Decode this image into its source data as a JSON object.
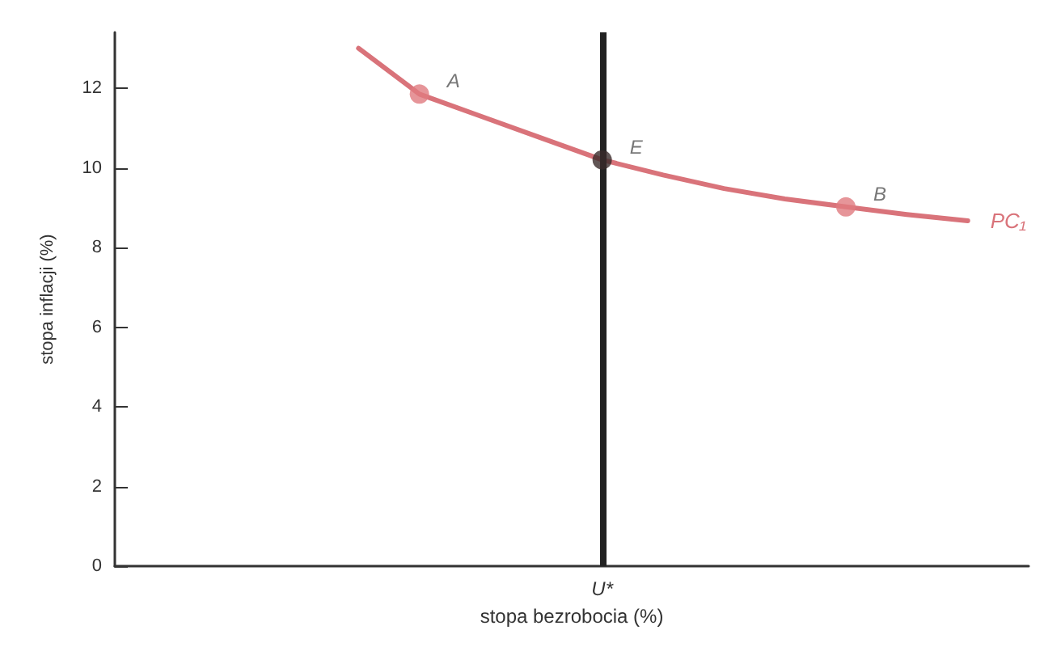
{
  "chart_data": {
    "type": "line",
    "xlabel": "stopa bezrobocia (%)",
    "ylabel": "stopa inflacji (%)",
    "categories": [
      null,
      null,
      null,
      null,
      null,
      null,
      null,
      null,
      "U*",
      null,
      null,
      null,
      null,
      null,
      null,
      null
    ],
    "ylim": [
      0,
      13.4
    ],
    "yticks": [
      0,
      2,
      4,
      6,
      8,
      10,
      12
    ],
    "grid": false,
    "legend": false,
    "series": [
      {
        "name": "PC₁",
        "color": "#d9737a",
        "marker": "none",
        "values": [
          null,
          null,
          null,
          null,
          13.0,
          11.85,
          11.3,
          10.75,
          10.2,
          9.82,
          9.48,
          9.22,
          9.02,
          8.83,
          8.67,
          null
        ]
      },
      {
        "type": "scatter",
        "color": "#d9737a",
        "colors": [
          null,
          null,
          null,
          null,
          null,
          "#e07a80",
          null,
          null,
          "#3a2a2a",
          null,
          null,
          null,
          "#e07a80",
          null,
          null,
          null
        ],
        "marker": "circle",
        "values": [
          null,
          null,
          null,
          null,
          null,
          11.85,
          null,
          null,
          10.2,
          null,
          null,
          null,
          9.02,
          null,
          null,
          null
        ]
      }
    ],
    "annotations": [
      "A",
      "E",
      "B"
    ],
    "ref_lines": [
      {
        "axis": "x",
        "value": "U*",
        "color": "#222222"
      }
    ]
  }
}
